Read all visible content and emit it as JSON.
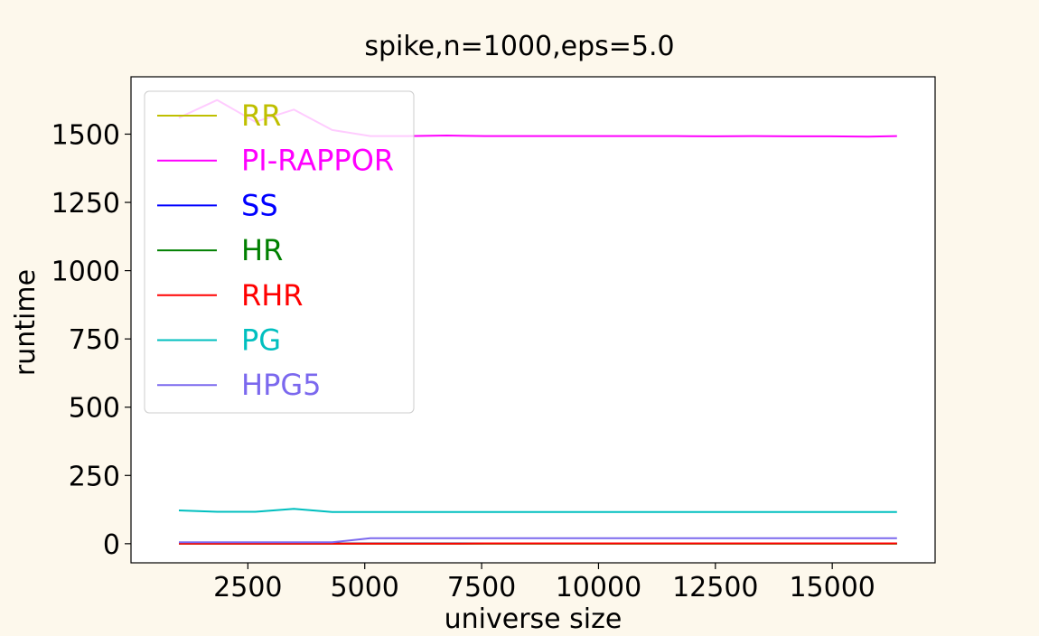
{
  "chart_data": {
    "type": "line",
    "title": "spike,n=1000,eps=5.0",
    "xlabel": "universe size",
    "ylabel": "runtime",
    "xlim": [
      0,
      17200
    ],
    "ylim": [
      -70,
      1710
    ],
    "xticks": [
      2500,
      5000,
      7500,
      10000,
      12500,
      15000
    ],
    "xtick_labels": [
      "2500",
      "5000",
      "7500",
      "10000",
      "12500",
      "15000"
    ],
    "yticks": [
      0,
      250,
      500,
      750,
      1000,
      1250,
      1500
    ],
    "ytick_labels": [
      "0",
      "250",
      "500",
      "750",
      "1000",
      "1250",
      "1500"
    ],
    "grid": false,
    "legend_position": "top-left",
    "x": [
      1024,
      1843,
      2662,
      3482,
      4301,
      5120,
      5939,
      6758,
      7578,
      8397,
      9216,
      10035,
      10854,
      11674,
      12493,
      13312,
      14131,
      14950,
      15770,
      16384
    ],
    "series": [
      {
        "name": "RR",
        "color": "#bfbf00",
        "values": [
          0,
          0,
          0,
          0,
          0,
          0,
          0,
          0,
          0,
          0,
          0,
          0,
          0,
          0,
          0,
          0,
          0,
          0,
          0,
          0
        ]
      },
      {
        "name": "PI-RAPPOR",
        "color": "#ff00ff",
        "values": [
          1560,
          1625,
          1545,
          1590,
          1515,
          1493,
          1493,
          1495,
          1493,
          1493,
          1493,
          1493,
          1493,
          1493,
          1492,
          1493,
          1492,
          1492,
          1491,
          1493
        ]
      },
      {
        "name": "SS",
        "color": "#0000ff",
        "values": [
          1,
          1,
          1,
          1,
          1,
          1,
          1,
          1,
          1,
          1,
          1,
          1,
          1,
          1,
          1,
          1,
          1,
          1,
          1,
          1
        ]
      },
      {
        "name": "HR",
        "color": "#008000",
        "values": [
          0,
          0,
          0,
          0,
          0,
          0,
          0,
          0,
          0,
          0,
          0,
          0,
          0,
          0,
          0,
          0,
          0,
          0,
          0,
          0
        ]
      },
      {
        "name": "RHR",
        "color": "#ff0000",
        "values": [
          0,
          0,
          0,
          0,
          0,
          0,
          0,
          0,
          1,
          1,
          1,
          1,
          1,
          1,
          1,
          1,
          1,
          1,
          1,
          1
        ]
      },
      {
        "name": "PG",
        "color": "#00bfbf",
        "values": [
          122,
          117,
          117,
          128,
          116,
          116,
          116,
          116,
          116,
          116,
          116,
          116,
          116,
          116,
          116,
          116,
          116,
          116,
          116,
          116
        ]
      },
      {
        "name": "HPG5",
        "color": "#7b68ee",
        "values": [
          5,
          5,
          5,
          5,
          5,
          20,
          20,
          20,
          20,
          20,
          20,
          20,
          20,
          20,
          20,
          20,
          20,
          20,
          20,
          20
        ]
      }
    ]
  }
}
